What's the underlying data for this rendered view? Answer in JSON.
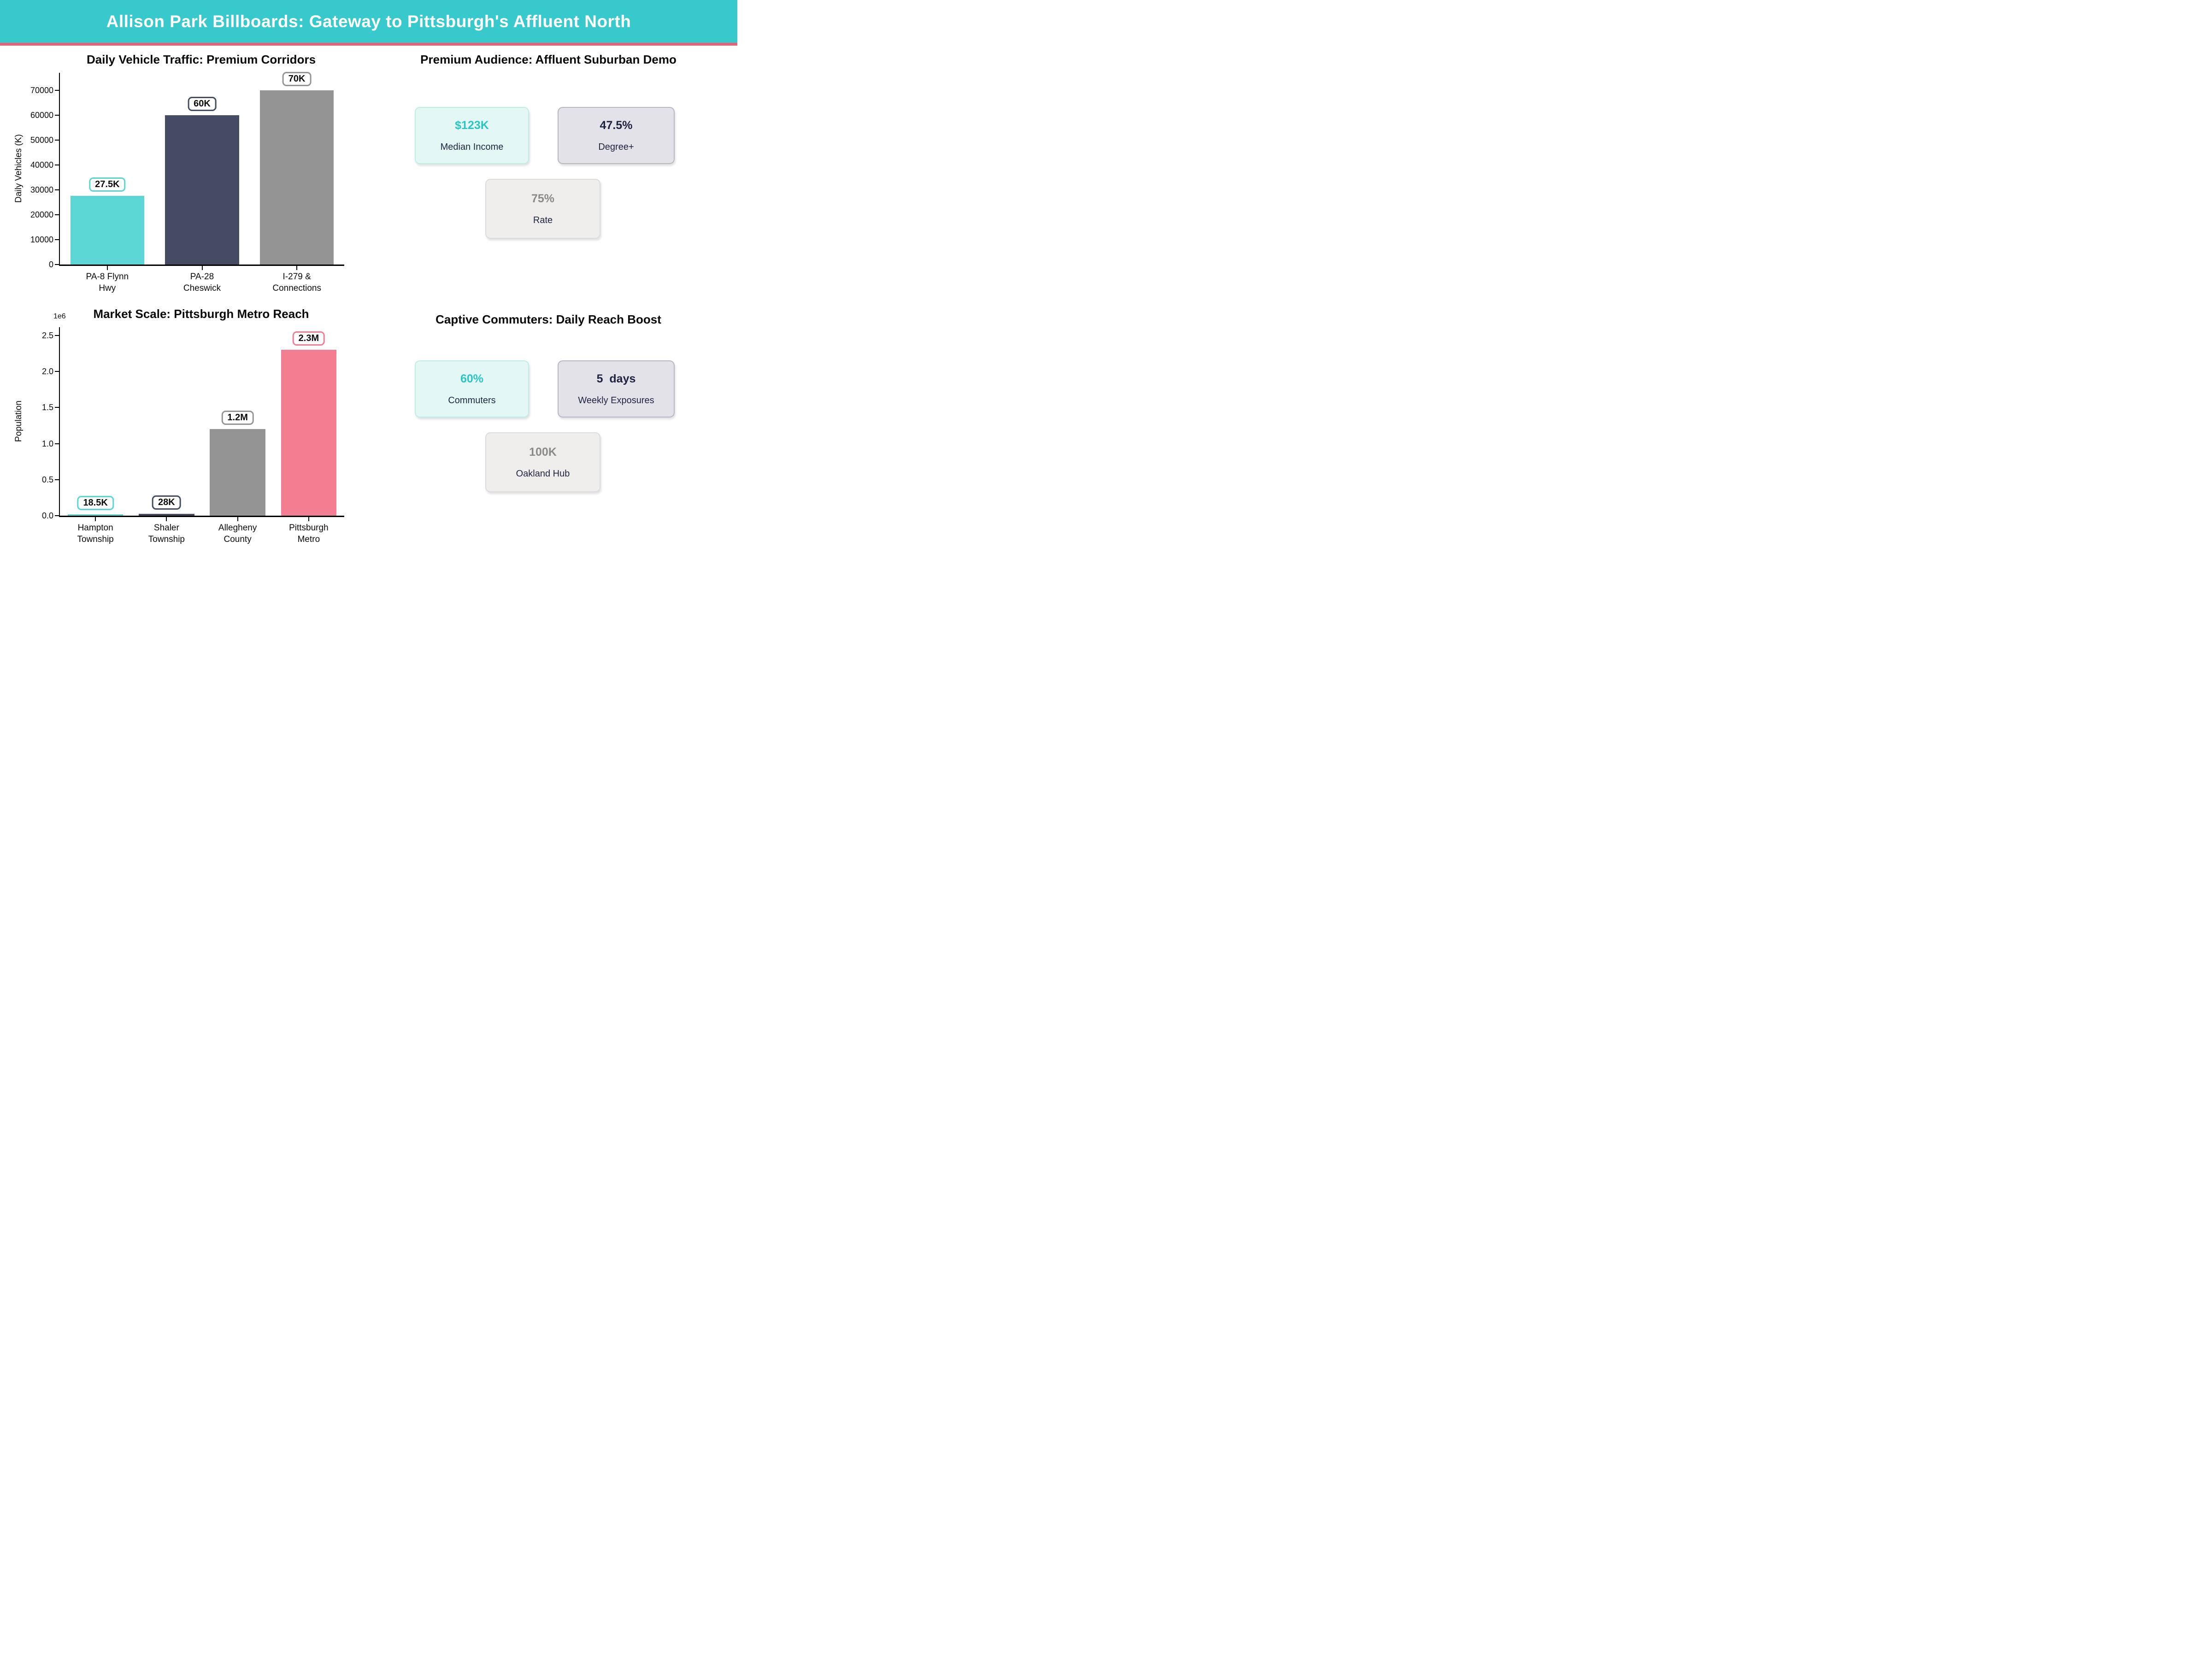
{
  "header": {
    "title": "Allison Park Billboards: Gateway to Pittsburgh's Affluent North",
    "bg_color": "#38C9CC",
    "divider_color": "#EF5E78",
    "text_color": "#FFFFFF"
  },
  "chart_data": [
    {
      "type": "bar",
      "title": "Daily Vehicle Traffic: Premium Corridors",
      "xlabel": "",
      "ylabel": "Daily Vehicles (K)",
      "categories": [
        "PA-8 Flynn\nHwy",
        "PA-28\nCheswick",
        "I-279 &\nConnections"
      ],
      "values": [
        27500,
        60000,
        70000
      ],
      "bar_labels": [
        "27.5K",
        "60K",
        "70K"
      ],
      "bar_colors": [
        "#5BD6D5",
        "#454B62",
        "#949494"
      ],
      "yticks": [
        0,
        10000,
        20000,
        30000,
        40000,
        50000,
        60000,
        70000
      ],
      "ytick_labels": [
        "0",
        "10000",
        "20000",
        "30000",
        "40000",
        "50000",
        "60000",
        "70000"
      ],
      "ylim": [
        0,
        77000
      ],
      "grid": false,
      "legend": null
    },
    {
      "type": "bar",
      "title": "Market Scale: Pittsburgh Metro Reach",
      "xlabel": "",
      "ylabel": "Population",
      "y_offset_label": "1e6",
      "categories": [
        "Hampton\nTownship",
        "Shaler\nTownship",
        "Allegheny\nCounty",
        "Pittsburgh\nMetro"
      ],
      "values": [
        18500,
        28000,
        1200000,
        2300000
      ],
      "bar_labels": [
        "18.5K",
        "28K",
        "1.2M",
        "2.3M"
      ],
      "bar_colors": [
        "#5BD6D5",
        "#454B62",
        "#949494",
        "#F47E91"
      ],
      "yticks": [
        0,
        500000,
        1000000,
        1500000,
        2000000,
        2500000
      ],
      "ytick_labels": [
        "0.0",
        "0.5",
        "1.0",
        "1.5",
        "2.0",
        "2.5"
      ],
      "ylim": [
        0,
        2615000
      ],
      "grid": false,
      "legend": null
    }
  ],
  "panels": {
    "audience": {
      "title": "Premium Audience: Affluent Suburban Demo",
      "cards": [
        {
          "value": "$123K",
          "label": "Median Income",
          "bg": "#E3F8F5",
          "border": "#BEEDE7",
          "value_color": "#2BC5C4",
          "label_color": "#1E2340"
        },
        {
          "value": "47.5%",
          "label": "Degree+",
          "bg": "#E2E2E8",
          "border": "#B7B7C3",
          "value_color": "#1E2340",
          "label_color": "#1E2340"
        },
        {
          "value": "75%",
          "label": "Rate",
          "bg": "#EFEEEC",
          "border": "#DCDCDA",
          "value_color": "#8A8A8A",
          "label_color": "#1E2340"
        }
      ]
    },
    "commuters": {
      "title": "Captive Commuters: Daily Reach Boost",
      "cards": [
        {
          "value": "60%",
          "label": "Commuters",
          "bg": "#E3F8F5",
          "border": "#BEEDE7",
          "value_color": "#2BC5C4",
          "label_color": "#1E2340"
        },
        {
          "value": "5  days",
          "label": "Weekly Exposures",
          "bg": "#E2E2E8",
          "border": "#B7B7C3",
          "value_color": "#1E2340",
          "label_color": "#1E2340"
        },
        {
          "value": "100K",
          "label": "Oakland Hub",
          "bg": "#EFEEEC",
          "border": "#DCDCDA",
          "value_color": "#8A8A8A",
          "label_color": "#1E2340"
        }
      ]
    }
  }
}
